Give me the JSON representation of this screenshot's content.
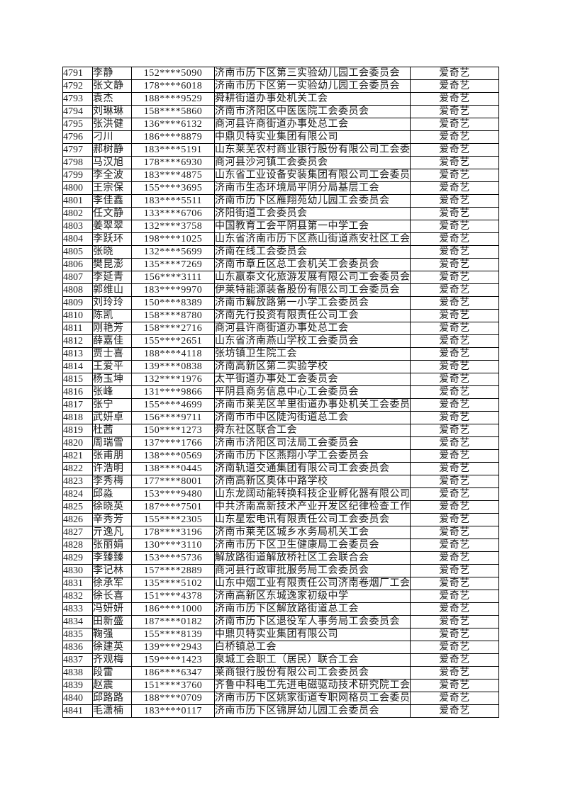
{
  "page": {
    "background_color": "#ffffff",
    "text_color": "#1a1a1a",
    "border_color": "#000000"
  },
  "table": {
    "row_count": 51,
    "first_serial": "4791",
    "last_serial": "4841",
    "rows": [
      {
        "id": "4791",
        "name": "李静",
        "phone": "152****5090",
        "org": "济南市历下区第三实验幼儿园工会委员会",
        "prize": "爱奇艺"
      },
      {
        "id": "4792",
        "name": "张文静",
        "phone": "178****6018",
        "org": "济南市历下区第一实验幼儿园工会委员会",
        "prize": "爱奇艺"
      },
      {
        "id": "4793",
        "name": "袁杰",
        "phone": "188****9529",
        "org": "舜耕街道办事处机关工会",
        "prize": "爱奇艺"
      },
      {
        "id": "4794",
        "name": "刘琳琳",
        "phone": "158****5860",
        "org": "济南市济阳区中医医院工会委员会",
        "prize": "爱奇艺"
      },
      {
        "id": "4795",
        "name": "张洪健",
        "phone": "136****6132",
        "org": "商河县许商街道办事处总工会",
        "prize": "爱奇艺"
      },
      {
        "id": "4796",
        "name": "刁川",
        "phone": "186****8879",
        "org": "中鼎贝特实业集团有限公司",
        "prize": "爱奇艺"
      },
      {
        "id": "4797",
        "name": "郝树静",
        "phone": "183****5191",
        "org": "山东莱芜农村商业银行股份有限公司工会委",
        "prize": "爱奇艺"
      },
      {
        "id": "4798",
        "name": "马汉旭",
        "phone": "178****6930",
        "org": "商河县沙河镇工会委员会",
        "prize": "爱奇艺"
      },
      {
        "id": "4799",
        "name": "李全波",
        "phone": "183****4875",
        "org": "山东省工业设备安装集团有限公司工会委员",
        "prize": "爱奇艺"
      },
      {
        "id": "4800",
        "name": "王宗保",
        "phone": "155****3695",
        "org": "济南市生态环境局平阴分局基层工会",
        "prize": "爱奇艺"
      },
      {
        "id": "4801",
        "name": "李佳鑫",
        "phone": "183****5511",
        "org": "济南市历下区雁翔苑幼儿园工会委员会",
        "prize": "爱奇艺"
      },
      {
        "id": "4802",
        "name": "任文静",
        "phone": "133****6706",
        "org": "济阳街道工会委员会",
        "prize": "爱奇艺"
      },
      {
        "id": "4803",
        "name": "姜翠翠",
        "phone": "132****3758",
        "org": "中国教育工会平阴县第一中学工会",
        "prize": "爱奇艺"
      },
      {
        "id": "4804",
        "name": "李跃环",
        "phone": "198****1025",
        "org": "山东省济南市历下区燕山街道燕安社区工会",
        "prize": "爱奇艺"
      },
      {
        "id": "4805",
        "name": "张晓",
        "phone": "132****5699",
        "org": "济南在线工会委员会",
        "prize": "爱奇艺"
      },
      {
        "id": "4806",
        "name": "樊昆澎",
        "phone": "135****7269",
        "org": "济南市章丘区总工会机关工会委员会",
        "prize": "爱奇艺"
      },
      {
        "id": "4807",
        "name": "李延青",
        "phone": "156****3111",
        "org": "山东嬴泰文化旅游发展有限公司工会委员会",
        "prize": "爱奇艺"
      },
      {
        "id": "4808",
        "name": "郭维山",
        "phone": "183****9970",
        "org": "伊莱特能源装备股份有限公司工会委员会",
        "prize": "爱奇艺"
      },
      {
        "id": "4809",
        "name": "刘玲玲",
        "phone": "150****8389",
        "org": "济南市解放路第一小学工会委员会",
        "prize": "爱奇艺"
      },
      {
        "id": "4810",
        "name": "陈凯",
        "phone": "158****8780",
        "org": "济南先行投资有限责任公司工会",
        "prize": "爱奇艺"
      },
      {
        "id": "4811",
        "name": "刚艳芳",
        "phone": "158****2716",
        "org": "商河县许商街道办事处总工会",
        "prize": "爱奇艺"
      },
      {
        "id": "4812",
        "name": "薛嘉佳",
        "phone": "155****2651",
        "org": "山东省济南燕山学校工会委员会",
        "prize": "爱奇艺"
      },
      {
        "id": "4813",
        "name": "贾士喜",
        "phone": "188****4118",
        "org": "张坊镇卫生院工会",
        "prize": "爱奇艺"
      },
      {
        "id": "4814",
        "name": "王爱平",
        "phone": "139****0838",
        "org": "济南高新区第二实验学校",
        "prize": "爱奇艺"
      },
      {
        "id": "4815",
        "name": "杨玉坤",
        "phone": "132****1976",
        "org": "太平街道办事处工会委员会",
        "prize": "爱奇艺"
      },
      {
        "id": "4816",
        "name": "张峰",
        "phone": "131****9866",
        "org": "平阴县商务信息中心工会委员会",
        "prize": "爱奇艺"
      },
      {
        "id": "4817",
        "name": "张宁",
        "phone": "155****4699",
        "org": "济南市莱芜区羊里街道办事处机关工会委员",
        "prize": "爱奇艺"
      },
      {
        "id": "4818",
        "name": "武妍卓",
        "phone": "156****9711",
        "org": "济南市市中区陡沟街道总工会",
        "prize": "爱奇艺"
      },
      {
        "id": "4819",
        "name": "杜茜",
        "phone": "150****1273",
        "org": "舜东社区联合工会",
        "prize": "爱奇艺"
      },
      {
        "id": "4820",
        "name": "周瑞雪",
        "phone": "137****1766",
        "org": "济南市济阳区司法局工会委员会",
        "prize": "爱奇艺"
      },
      {
        "id": "4821",
        "name": "张甫朋",
        "phone": "138****0569",
        "org": "济南市历下区燕翔小学工会委员会",
        "prize": "爱奇艺"
      },
      {
        "id": "4822",
        "name": "许浩明",
        "phone": "138****0445",
        "org": "济南轨道交通集团有限公司工会委员会",
        "prize": "爱奇艺"
      },
      {
        "id": "4823",
        "name": "李秀梅",
        "phone": "177****8001",
        "org": "济南高新区奥体中路学校",
        "prize": "爱奇艺"
      },
      {
        "id": "4824",
        "name": "邱淼",
        "phone": "153****9480",
        "org": "山东龙阔动能转换科技企业孵化器有限公司",
        "prize": "爱奇艺"
      },
      {
        "id": "4825",
        "name": "徐晓英",
        "phone": "187****7501",
        "org": "中共济南高新技术产业开发区纪律检查工作",
        "prize": "爱奇艺"
      },
      {
        "id": "4826",
        "name": "辛秀芳",
        "phone": "155****2305",
        "org": "山东星宏电讯有限责任公司工会委员会",
        "prize": "爱奇艺"
      },
      {
        "id": "4827",
        "name": "亓逸凡",
        "phone": "178****3196",
        "org": "济南市莱芜区城乡水务局机关工会",
        "prize": "爱奇艺"
      },
      {
        "id": "4828",
        "name": "张丽娟",
        "phone": "130****3110",
        "org": "济南市历下区卫生健康局工会委员会",
        "prize": "爱奇艺"
      },
      {
        "id": "4829",
        "name": "李臻臻",
        "phone": "153****5736",
        "org": "解放路街道解放桥社区工会联合会",
        "prize": "爱奇艺"
      },
      {
        "id": "4830",
        "name": "李记林",
        "phone": "157****2889",
        "org": "商河县行政审批服务局工会委员会",
        "prize": "爱奇艺"
      },
      {
        "id": "4831",
        "name": "徐承军",
        "phone": "135****5102",
        "org": "山东中烟工业有限责任公司济南卷烟厂工会",
        "prize": "爱奇艺"
      },
      {
        "id": "4832",
        "name": "徐长喜",
        "phone": "151****4378",
        "org": "济南高新区东城逸家初级中学",
        "prize": "爱奇艺"
      },
      {
        "id": "4833",
        "name": "冯妍妍",
        "phone": "186****1000",
        "org": "济南市历下区解放路街道总工会",
        "prize": "爱奇艺"
      },
      {
        "id": "4834",
        "name": "田新盛",
        "phone": "187****0182",
        "org": "济南市历下区退役军人事务局工会委员会",
        "prize": "爱奇艺"
      },
      {
        "id": "4835",
        "name": "鞠强",
        "phone": "155****8139",
        "org": "中鼎贝特实业集团有限公司",
        "prize": "爱奇艺"
      },
      {
        "id": "4836",
        "name": "徐建英",
        "phone": "139****2943",
        "org": "白桥镇总工会",
        "prize": "爱奇艺"
      },
      {
        "id": "4837",
        "name": "齐观梅",
        "phone": "159****1423",
        "org": "泉城工会职工（居民）联合工会",
        "prize": "爱奇艺"
      },
      {
        "id": "4838",
        "name": "段雷",
        "phone": "186****6347",
        "org": "莱商银行股份有限公司工会委员会",
        "prize": "爱奇艺"
      },
      {
        "id": "4839",
        "name": "赵震",
        "phone": "151****3760",
        "org": "齐鲁中科电工先进电磁驱动技术研究院工会",
        "prize": "爱奇艺"
      },
      {
        "id": "4840",
        "name": "邱路路",
        "phone": "188****0709",
        "org": "济南市历下区姚家街道专职网格员工会委员",
        "prize": "爱奇艺"
      },
      {
        "id": "4841",
        "name": "毛潇楠",
        "phone": "183****0117",
        "org": "济南市历下区锦屏幼儿园工会委员会",
        "prize": "爱奇艺"
      }
    ]
  }
}
